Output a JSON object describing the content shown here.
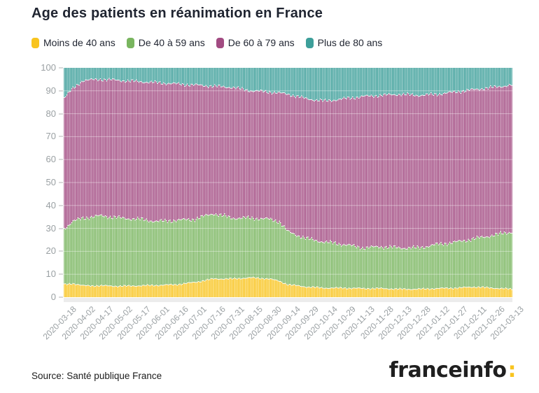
{
  "title": "Age des patients en réanimation en France",
  "legend": [
    {
      "name": "moins-40",
      "label": "Moins de 40 ans",
      "color": "#f8c41f"
    },
    {
      "name": "40-59",
      "label": "De 40 à 59 ans",
      "color": "#79b55f"
    },
    {
      "name": "60-79",
      "label": "De 60 à 79 ans",
      "color": "#a24b82"
    },
    {
      "name": "plus-80",
      "label": "Plus de 80 ans",
      "color": "#3d9f9a"
    }
  ],
  "footer": {
    "source": "Source: Santé publique France",
    "logo_text": "franceinfo",
    "logo_colon": ":",
    "logo_colon_color": "#f8c41f"
  },
  "chart_data": {
    "type": "bar",
    "stacked": true,
    "unit": "percent of ICU patients",
    "title": "Age des patients en réanimation en France",
    "ylim": [
      0,
      100
    ],
    "yticks": [
      0,
      10,
      20,
      30,
      40,
      50,
      60,
      70,
      80,
      90,
      100
    ],
    "grid": "horizontal-white",
    "legend_position": "top",
    "x_start": "2020-03-18",
    "x_end": "2021-03-13",
    "bar_interval_days": 1,
    "x_tick_labels": [
      "2020-03-18",
      "2020-04-02",
      "2020-04-17",
      "2020-05-02",
      "2020-05-17",
      "2020-06-01",
      "2020-06-16",
      "2020-07-01",
      "2020-07-16",
      "2020-07-31",
      "2020-08-15",
      "2020-08-30",
      "2020-09-14",
      "2020-09-29",
      "2020-10-14",
      "2020-10-29",
      "2020-11-13",
      "2020-11-28",
      "2020-12-13",
      "2020-12-28",
      "2021-01-12",
      "2021-01-27",
      "2021-02-11",
      "2021-02-26",
      "2021-03-13"
    ],
    "x_tick_step_days": 15,
    "series_names": [
      "Moins de 40 ans",
      "De 40 à 59 ans",
      "De 60 à 79 ans",
      "Plus de 80 ans"
    ],
    "series_colors": [
      "#f8c41f",
      "#79b55f",
      "#a24b82",
      "#3d9f9a"
    ],
    "keyframes": [
      {
        "date": "2020-03-18",
        "m40": 5.5,
        "a40_59": 24.5,
        "a60_79": 57.0,
        "p80": 13.0
      },
      {
        "date": "2020-03-25",
        "m40": 6.0,
        "a40_59": 27.0,
        "a60_79": 58.0,
        "p80": 9.0
      },
      {
        "date": "2020-04-02",
        "m40": 5.0,
        "a40_59": 29.5,
        "a60_79": 60.0,
        "p80": 5.5
      },
      {
        "date": "2020-04-17",
        "m40": 5.0,
        "a40_59": 30.5,
        "a60_79": 59.5,
        "p80": 5.0
      },
      {
        "date": "2020-05-02",
        "m40": 4.8,
        "a40_59": 29.7,
        "a60_79": 60.0,
        "p80": 5.5
      },
      {
        "date": "2020-05-17",
        "m40": 5.0,
        "a40_59": 29.0,
        "a60_79": 60.0,
        "p80": 6.0
      },
      {
        "date": "2020-06-01",
        "m40": 5.2,
        "a40_59": 27.8,
        "a60_79": 60.5,
        "p80": 6.5
      },
      {
        "date": "2020-06-16",
        "m40": 5.5,
        "a40_59": 28.0,
        "a60_79": 59.5,
        "p80": 7.0
      },
      {
        "date": "2020-07-01",
        "m40": 6.5,
        "a40_59": 27.5,
        "a60_79": 58.5,
        "p80": 7.5
      },
      {
        "date": "2020-07-16",
        "m40": 8.0,
        "a40_59": 28.5,
        "a60_79": 55.5,
        "p80": 8.0
      },
      {
        "date": "2020-07-31",
        "m40": 8.0,
        "a40_59": 26.5,
        "a60_79": 57.0,
        "p80": 8.5
      },
      {
        "date": "2020-08-15",
        "m40": 8.5,
        "a40_59": 26.0,
        "a60_79": 55.5,
        "p80": 10.0
      },
      {
        "date": "2020-08-30",
        "m40": 8.0,
        "a40_59": 26.0,
        "a60_79": 55.5,
        "p80": 10.5
      },
      {
        "date": "2020-09-07",
        "m40": 7.0,
        "a40_59": 26.0,
        "a60_79": 56.0,
        "p80": 11.0
      },
      {
        "date": "2020-09-14",
        "m40": 5.5,
        "a40_59": 23.0,
        "a60_79": 60.0,
        "p80": 11.5
      },
      {
        "date": "2020-09-29",
        "m40": 4.5,
        "a40_59": 21.0,
        "a60_79": 61.0,
        "p80": 13.5
      },
      {
        "date": "2020-10-14",
        "m40": 4.0,
        "a40_59": 20.0,
        "a60_79": 61.5,
        "p80": 14.5
      },
      {
        "date": "2020-10-29",
        "m40": 4.0,
        "a40_59": 19.0,
        "a60_79": 63.5,
        "p80": 13.5
      },
      {
        "date": "2020-11-13",
        "m40": 3.8,
        "a40_59": 17.7,
        "a60_79": 66.0,
        "p80": 12.5
      },
      {
        "date": "2020-11-28",
        "m40": 3.8,
        "a40_59": 18.2,
        "a60_79": 66.0,
        "p80": 12.0
      },
      {
        "date": "2020-12-13",
        "m40": 3.5,
        "a40_59": 18.0,
        "a60_79": 67.0,
        "p80": 11.5
      },
      {
        "date": "2020-12-28",
        "m40": 3.5,
        "a40_59": 18.0,
        "a60_79": 66.5,
        "p80": 12.0
      },
      {
        "date": "2021-01-12",
        "m40": 3.8,
        "a40_59": 19.2,
        "a60_79": 65.5,
        "p80": 11.5
      },
      {
        "date": "2021-01-27",
        "m40": 4.0,
        "a40_59": 20.0,
        "a60_79": 65.5,
        "p80": 10.5
      },
      {
        "date": "2021-02-11",
        "m40": 4.5,
        "a40_59": 21.0,
        "a60_79": 65.0,
        "p80": 9.5
      },
      {
        "date": "2021-02-26",
        "m40": 4.0,
        "a40_59": 23.0,
        "a60_79": 64.5,
        "p80": 8.5
      },
      {
        "date": "2021-03-13",
        "m40": 3.5,
        "a40_59": 25.0,
        "a60_79": 64.0,
        "p80": 7.5
      }
    ]
  }
}
